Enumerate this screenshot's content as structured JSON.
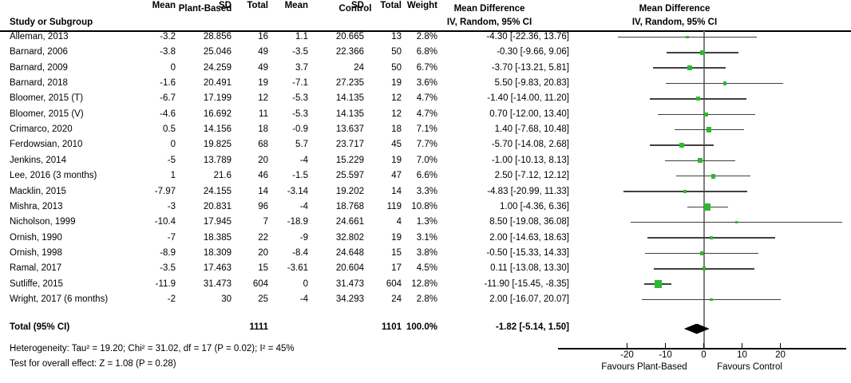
{
  "header": {
    "group_plant_based": "Plant-Based",
    "group_control": "Control",
    "study_col": "Study or Subgroup",
    "mean": "Mean",
    "sd": "SD",
    "total": "Total",
    "weight": "Weight",
    "md_line1": "Mean Difference",
    "md_line2": "IV, Random, 95% CI",
    "plot_line1": "Mean Difference",
    "plot_line2": "IV, Random, 95% CI"
  },
  "table": {
    "rows": [
      {
        "name": "Alleman, 2013",
        "cells": [
          "-3.2",
          "28.856",
          "16",
          "1.1",
          "20.665",
          "13",
          "2.8%",
          "-4.30 [-22.36, 13.76]"
        ]
      },
      {
        "name": "Barnard, 2006",
        "cells": [
          "-3.8",
          "25.046",
          "49",
          "-3.5",
          "22.366",
          "50",
          "6.8%",
          "-0.30 [-9.66, 9.06]"
        ]
      },
      {
        "name": "Barnard, 2009",
        "cells": [
          "0",
          "24.259",
          "49",
          "3.7",
          "24",
          "50",
          "6.7%",
          "-3.70 [-13.21, 5.81]"
        ]
      },
      {
        "name": "Barnard, 2018",
        "cells": [
          "-1.6",
          "20.491",
          "19",
          "-7.1",
          "27.235",
          "19",
          "3.6%",
          "5.50 [-9.83, 20.83]"
        ]
      },
      {
        "name": "Bloomer, 2015 (T)",
        "cells": [
          "-6.7",
          "17.199",
          "12",
          "-5.3",
          "14.135",
          "12",
          "4.7%",
          "-1.40 [-14.00, 11.20]"
        ]
      },
      {
        "name": "Bloomer, 2015 (V)",
        "cells": [
          "-4.6",
          "16.692",
          "11",
          "-5.3",
          "14.135",
          "12",
          "4.7%",
          "0.70 [-12.00, 13.40]"
        ]
      },
      {
        "name": "Crimarco, 2020",
        "cells": [
          "0.5",
          "14.156",
          "18",
          "-0.9",
          "13.637",
          "18",
          "7.1%",
          "1.40 [-7.68, 10.48]"
        ]
      },
      {
        "name": "Ferdowsian, 2010",
        "cells": [
          "0",
          "19.825",
          "68",
          "5.7",
          "23.717",
          "45",
          "7.7%",
          "-5.70 [-14.08, 2.68]"
        ]
      },
      {
        "name": "Jenkins, 2014",
        "cells": [
          "-5",
          "13.789",
          "20",
          "-4",
          "15.229",
          "19",
          "7.0%",
          "-1.00 [-10.13, 8.13]"
        ]
      },
      {
        "name": "Lee, 2016 (3 months)",
        "cells": [
          "1",
          "21.6",
          "46",
          "-1.5",
          "25.597",
          "47",
          "6.6%",
          "2.50 [-7.12, 12.12]"
        ]
      },
      {
        "name": "Macklin, 2015",
        "cells": [
          "-7.97",
          "24.155",
          "14",
          "-3.14",
          "19.202",
          "14",
          "3.3%",
          "-4.83 [-20.99, 11.33]"
        ]
      },
      {
        "name": "Mishra, 2013",
        "cells": [
          "-3",
          "20.831",
          "96",
          "-4",
          "18.768",
          "119",
          "10.8%",
          "1.00 [-4.36, 6.36]"
        ]
      },
      {
        "name": "Nicholson, 1999",
        "cells": [
          "-10.4",
          "17.945",
          "7",
          "-18.9",
          "24.661",
          "4",
          "1.3%",
          "8.50 [-19.08, 36.08]"
        ]
      },
      {
        "name": "Ornish, 1990",
        "cells": [
          "-7",
          "18.385",
          "22",
          "-9",
          "32.802",
          "19",
          "3.1%",
          "2.00 [-14.63, 18.63]"
        ]
      },
      {
        "name": "Ornish, 1998",
        "cells": [
          "-8.9",
          "18.309",
          "20",
          "-8.4",
          "24.648",
          "15",
          "3.8%",
          "-0.50 [-15.33, 14.33]"
        ]
      },
      {
        "name": "Ramal, 2017",
        "cells": [
          "-3.5",
          "17.463",
          "15",
          "-3.61",
          "20.604",
          "17",
          "4.5%",
          "0.11 [-13.08, 13.30]"
        ]
      },
      {
        "name": "Sutliffe, 2015",
        "cells": [
          "-11.9",
          "31.473",
          "604",
          "0",
          "31.473",
          "604",
          "12.8%",
          "-11.90 [-15.45, -8.35]"
        ]
      },
      {
        "name": "Wright, 2017 (6 months)",
        "cells": [
          "-2",
          "30",
          "25",
          "-4",
          "34.293",
          "24",
          "2.8%",
          "2.00 [-16.07, 20.07]"
        ]
      }
    ],
    "total_row": {
      "label": "Total (95% CI)",
      "pb_total": "1111",
      "c_total": "1101",
      "weight": "100.0%",
      "md_text": "-1.82 [-5.14, 1.50]"
    }
  },
  "footer": {
    "heterogeneity": "Heterogeneity: Tau² = 19.20; Chi² = 31.02, df = 17 (P = 0.02); I² = 45%",
    "overall": "Test for overall effect: Z = 1.08 (P = 0.28)"
  },
  "axis": {
    "ticks": [
      -20,
      -10,
      0,
      10,
      20
    ],
    "favours_left": "Favours Plant-Based",
    "favours_right": "Favours Control"
  },
  "colors": {
    "marker_green": "#2db92d",
    "ci_line": "#404040",
    "zero_line": "#7f7f7f",
    "axis": "#000000",
    "diamond": "#000000",
    "text": "#000000",
    "background": "#ffffff"
  },
  "chart_data": {
    "type": "forest",
    "title": "",
    "effect_label": "Mean Difference",
    "method_label": "IV, Random, 95% CI",
    "x_ticks": [
      -20,
      -10,
      0,
      10,
      20
    ],
    "x_axis_range": [
      -38,
      37
    ],
    "favours": [
      "Favours Plant-Based",
      "Favours Control"
    ],
    "studies": [
      {
        "name": "Alleman, 2013",
        "plant_based": {
          "mean": -3.2,
          "sd": 28.856,
          "n": 16
        },
        "control": {
          "mean": 1.1,
          "sd": 20.665,
          "n": 13
        },
        "weight_pct": 2.8,
        "md": -4.3,
        "ci_low": -22.36,
        "ci_high": 13.76
      },
      {
        "name": "Barnard, 2006",
        "plant_based": {
          "mean": -3.8,
          "sd": 25.046,
          "n": 49
        },
        "control": {
          "mean": -3.5,
          "sd": 22.366,
          "n": 50
        },
        "weight_pct": 6.8,
        "md": -0.3,
        "ci_low": -9.66,
        "ci_high": 9.06
      },
      {
        "name": "Barnard, 2009",
        "plant_based": {
          "mean": 0,
          "sd": 24.259,
          "n": 49
        },
        "control": {
          "mean": 3.7,
          "sd": 24,
          "n": 50
        },
        "weight_pct": 6.7,
        "md": -3.7,
        "ci_low": -13.21,
        "ci_high": 5.81
      },
      {
        "name": "Barnard, 2018",
        "plant_based": {
          "mean": -1.6,
          "sd": 20.491,
          "n": 19
        },
        "control": {
          "mean": -7.1,
          "sd": 27.235,
          "n": 19
        },
        "weight_pct": 3.6,
        "md": 5.5,
        "ci_low": -9.83,
        "ci_high": 20.83
      },
      {
        "name": "Bloomer, 2015 (T)",
        "plant_based": {
          "mean": -6.7,
          "sd": 17.199,
          "n": 12
        },
        "control": {
          "mean": -5.3,
          "sd": 14.135,
          "n": 12
        },
        "weight_pct": 4.7,
        "md": -1.4,
        "ci_low": -14.0,
        "ci_high": 11.2
      },
      {
        "name": "Bloomer, 2015 (V)",
        "plant_based": {
          "mean": -4.6,
          "sd": 16.692,
          "n": 11
        },
        "control": {
          "mean": -5.3,
          "sd": 14.135,
          "n": 12
        },
        "weight_pct": 4.7,
        "md": 0.7,
        "ci_low": -12.0,
        "ci_high": 13.4
      },
      {
        "name": "Crimarco, 2020",
        "plant_based": {
          "mean": 0.5,
          "sd": 14.156,
          "n": 18
        },
        "control": {
          "mean": -0.9,
          "sd": 13.637,
          "n": 18
        },
        "weight_pct": 7.1,
        "md": 1.4,
        "ci_low": -7.68,
        "ci_high": 10.48
      },
      {
        "name": "Ferdowsian, 2010",
        "plant_based": {
          "mean": 0,
          "sd": 19.825,
          "n": 68
        },
        "control": {
          "mean": 5.7,
          "sd": 23.717,
          "n": 45
        },
        "weight_pct": 7.7,
        "md": -5.7,
        "ci_low": -14.08,
        "ci_high": 2.68
      },
      {
        "name": "Jenkins, 2014",
        "plant_based": {
          "mean": -5,
          "sd": 13.789,
          "n": 20
        },
        "control": {
          "mean": -4,
          "sd": 15.229,
          "n": 19
        },
        "weight_pct": 7.0,
        "md": -1.0,
        "ci_low": -10.13,
        "ci_high": 8.13
      },
      {
        "name": "Lee, 2016 (3 months)",
        "plant_based": {
          "mean": 1,
          "sd": 21.6,
          "n": 46
        },
        "control": {
          "mean": -1.5,
          "sd": 25.597,
          "n": 47
        },
        "weight_pct": 6.6,
        "md": 2.5,
        "ci_low": -7.12,
        "ci_high": 12.12
      },
      {
        "name": "Macklin, 2015",
        "plant_based": {
          "mean": -7.97,
          "sd": 24.155,
          "n": 14
        },
        "control": {
          "mean": -3.14,
          "sd": 19.202,
          "n": 14
        },
        "weight_pct": 3.3,
        "md": -4.83,
        "ci_low": -20.99,
        "ci_high": 11.33
      },
      {
        "name": "Mishra, 2013",
        "plant_based": {
          "mean": -3,
          "sd": 20.831,
          "n": 96
        },
        "control": {
          "mean": -4,
          "sd": 18.768,
          "n": 119
        },
        "weight_pct": 10.8,
        "md": 1.0,
        "ci_low": -4.36,
        "ci_high": 6.36
      },
      {
        "name": "Nicholson, 1999",
        "plant_based": {
          "mean": -10.4,
          "sd": 17.945,
          "n": 7
        },
        "control": {
          "mean": -18.9,
          "sd": 24.661,
          "n": 4
        },
        "weight_pct": 1.3,
        "md": 8.5,
        "ci_low": -19.08,
        "ci_high": 36.08
      },
      {
        "name": "Ornish, 1990",
        "plant_based": {
          "mean": -7,
          "sd": 18.385,
          "n": 22
        },
        "control": {
          "mean": -9,
          "sd": 32.802,
          "n": 19
        },
        "weight_pct": 3.1,
        "md": 2.0,
        "ci_low": -14.63,
        "ci_high": 18.63
      },
      {
        "name": "Ornish, 1998",
        "plant_based": {
          "mean": -8.9,
          "sd": 18.309,
          "n": 20
        },
        "control": {
          "mean": -8.4,
          "sd": 24.648,
          "n": 15
        },
        "weight_pct": 3.8,
        "md": -0.5,
        "ci_low": -15.33,
        "ci_high": 14.33
      },
      {
        "name": "Ramal, 2017",
        "plant_based": {
          "mean": -3.5,
          "sd": 17.463,
          "n": 15
        },
        "control": {
          "mean": -3.61,
          "sd": 20.604,
          "n": 17
        },
        "weight_pct": 4.5,
        "md": 0.11,
        "ci_low": -13.08,
        "ci_high": 13.3
      },
      {
        "name": "Sutliffe, 2015",
        "plant_based": {
          "mean": -11.9,
          "sd": 31.473,
          "n": 604
        },
        "control": {
          "mean": 0,
          "sd": 31.473,
          "n": 604
        },
        "weight_pct": 12.8,
        "md": -11.9,
        "ci_low": -15.45,
        "ci_high": -8.35
      },
      {
        "name": "Wright, 2017 (6 months)",
        "plant_based": {
          "mean": -2,
          "sd": 30,
          "n": 25
        },
        "control": {
          "mean": -4,
          "sd": 34.293,
          "n": 24
        },
        "weight_pct": 2.8,
        "md": 2.0,
        "ci_low": -16.07,
        "ci_high": 20.07
      }
    ],
    "total": {
      "label": "Total (95% CI)",
      "n_plant_based": 1111,
      "n_control": 1101,
      "weight_pct": 100.0,
      "md": -1.82,
      "ci_low": -5.14,
      "ci_high": 1.5
    },
    "heterogeneity": {
      "tau2": 19.2,
      "chi2": 31.02,
      "df": 17,
      "p": 0.02,
      "i2_pct": 45
    },
    "overall_effect": {
      "z": 1.08,
      "p": 0.28
    }
  }
}
